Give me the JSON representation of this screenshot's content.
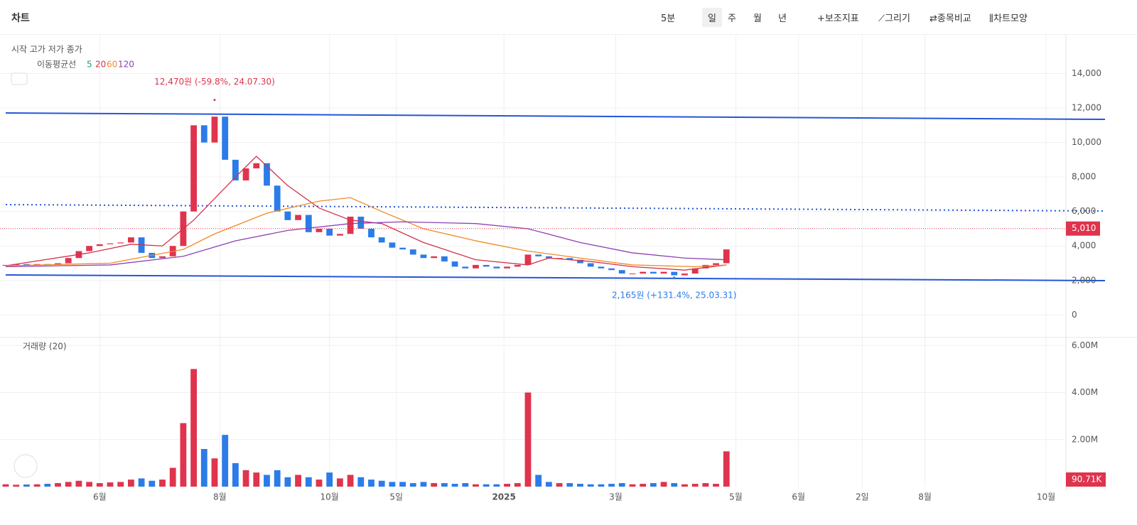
{
  "toolbar": {
    "title": "차트",
    "interval": "5분",
    "periods": [
      "일",
      "주",
      "월",
      "년"
    ],
    "tools": [
      "+보조지표",
      "⟋그리기",
      "⇄종목비교",
      "⫼차트모양"
    ]
  },
  "legend": {
    "ohlc": "시작 고가 저가 종가",
    "ma_title": "이동평균선",
    "ma_periods": [
      "5",
      "20",
      "60",
      "120"
    ],
    "volume_title": "거래량 (20)"
  },
  "chart_data": {
    "type": "candlestick",
    "xlim": [
      0,
      101.5
    ],
    "xticks": [
      {
        "value": 9,
        "label": "6월"
      },
      {
        "value": 20.5,
        "label": "8월"
      },
      {
        "value": 31,
        "label": "10월"
      },
      {
        "value": 37.4,
        "label": "5일"
      },
      {
        "value": 47.7,
        "label": "2025"
      },
      {
        "value": 58.4,
        "label": "3월"
      },
      {
        "value": 69.9,
        "label": "5월"
      },
      {
        "value": 75.9,
        "label": "6월"
      },
      {
        "value": 82,
        "label": "2일"
      },
      {
        "value": 88,
        "label": "8월"
      },
      {
        "value": 99.6,
        "label": "10월"
      }
    ],
    "ylim": [
      -1100,
      16000
    ],
    "yticks": [
      0,
      {
        "value": 2000,
        "label": "2,000"
      },
      {
        "value": 4000,
        "label": "4,000"
      },
      {
        "value": 6000,
        "label": "6,000"
      },
      {
        "value": 8000,
        "label": "8,000"
      },
      {
        "value": 10000,
        "label": "10,000"
      },
      {
        "value": 12000,
        "label": "12,000"
      },
      {
        "value": 14000,
        "label": "14,000"
      }
    ],
    "y2lim": [
      0,
      6250000
    ],
    "y2ticks": [
      {
        "value": 2000000,
        "label": "2.00M"
      },
      {
        "value": 4000000,
        "label": "4.00M"
      },
      {
        "value": 6000000,
        "label": "6.00M"
      }
    ],
    "open": [
      2850,
      2900,
      2950,
      2900,
      2950,
      2900,
      3000,
      3300,
      3700,
      4000,
      4100,
      4150,
      4200,
      4500,
      3600,
      3300,
      3400,
      4000,
      6000,
      11000,
      10000,
      11500,
      9000,
      7800,
      8500,
      8800,
      7500,
      6000,
      5500,
      5800,
      4800,
      5000,
      4600,
      4700,
      5700,
      5000,
      4500,
      4200,
      3900,
      3800,
      3500,
      3300,
      3400,
      3100,
      2800,
      2700,
      2900,
      2800,
      2700,
      2800,
      2900,
      3500,
      3400,
      3300,
      3300,
      3200,
      3000,
      2800,
      2700,
      2600,
      2400,
      2400,
      2500,
      2400,
      2500,
      2300,
      2400,
      2700,
      2900,
      3000
    ],
    "values": [
      2900,
      2950,
      2900,
      2950,
      2900,
      3000,
      3300,
      3700,
      4000,
      4100,
      4150,
      4200,
      4500,
      3600,
      3300,
      3400,
      4000,
      6000,
      11000,
      10000,
      11500,
      9000,
      7800,
      8500,
      8800,
      7500,
      6000,
      5500,
      5800,
      4800,
      5000,
      4600,
      4700,
      5700,
      5000,
      4500,
      4200,
      3900,
      3800,
      3500,
      3300,
      3400,
      3100,
      2800,
      2700,
      2900,
      2800,
      2700,
      2800,
      2900,
      3500,
      3400,
      3300,
      3300,
      3200,
      3000,
      2800,
      2700,
      2600,
      2400,
      2400,
      2500,
      2400,
      2500,
      2300,
      2400,
      2700,
      2900,
      3000,
      3800
    ],
    "volume": {
      "axis": "y2",
      "values": [
        100000,
        80000,
        90000,
        100000,
        120000,
        150000,
        200000,
        250000,
        200000,
        150000,
        180000,
        200000,
        300000,
        350000,
        250000,
        300000,
        800000,
        2700000,
        5000000,
        1600000,
        1200000,
        2200000,
        1000000,
        700000,
        600000,
        500000,
        700000,
        400000,
        500000,
        400000,
        300000,
        600000,
        350000,
        500000,
        400000,
        300000,
        250000,
        200000,
        200000,
        150000,
        200000,
        150000,
        150000,
        120000,
        150000,
        100000,
        100000,
        100000,
        120000,
        150000,
        4000000,
        500000,
        200000,
        150000,
        150000,
        120000,
        100000,
        100000,
        120000,
        150000,
        100000,
        120000,
        150000,
        200000,
        150000,
        100000,
        120000,
        150000,
        120000,
        1500000
      ]
    },
    "up_color": "#e0334d",
    "down_color": "#2b7ce9",
    "series": [
      {
        "name": "20",
        "color": "#d0344d",
        "x": [
          0,
          8,
          12,
          15,
          18,
          22,
          24,
          27,
          30,
          33,
          36,
          40,
          45,
          50,
          52,
          56,
          60,
          65,
          69
        ],
        "values": [
          2850,
          3600,
          4100,
          4000,
          5500,
          8000,
          9200,
          7500,
          6200,
          5500,
          5300,
          4200,
          3200,
          2900,
          3300,
          3100,
          2800,
          2600,
          2900
        ]
      },
      {
        "name": "60",
        "color": "#f08a24",
        "x": [
          0,
          10,
          17,
          20,
          25,
          30,
          33,
          36,
          40,
          45,
          50,
          55,
          60,
          66,
          69
        ],
        "values": [
          2850,
          3000,
          3800,
          4700,
          5900,
          6600,
          6800,
          6000,
          5000,
          4300,
          3700,
          3300,
          2900,
          2800,
          2900
        ]
      },
      {
        "name": "120",
        "color": "#8e3fb5",
        "x": [
          0,
          10,
          17,
          22,
          27,
          33,
          38,
          45,
          50,
          55,
          60,
          65,
          69
        ],
        "values": [
          2800,
          2900,
          3400,
          4300,
          4900,
          5300,
          5400,
          5300,
          5000,
          4200,
          3600,
          3300,
          3200
        ]
      }
    ],
    "annotations": [
      {
        "text": "12,470원 (-59.8%, 24.07.30)",
        "x": 20,
        "y": 12470,
        "color": "#e0334d"
      },
      {
        "text": "2,165원 (+131.4%, 25.03.31)",
        "x": 64,
        "y": 2165,
        "color": "#2b7ce9"
      }
    ],
    "last_price": {
      "value": 5010,
      "label": "5,010"
    },
    "last_volume": {
      "value": 90710,
      "label": "90.71K"
    }
  }
}
